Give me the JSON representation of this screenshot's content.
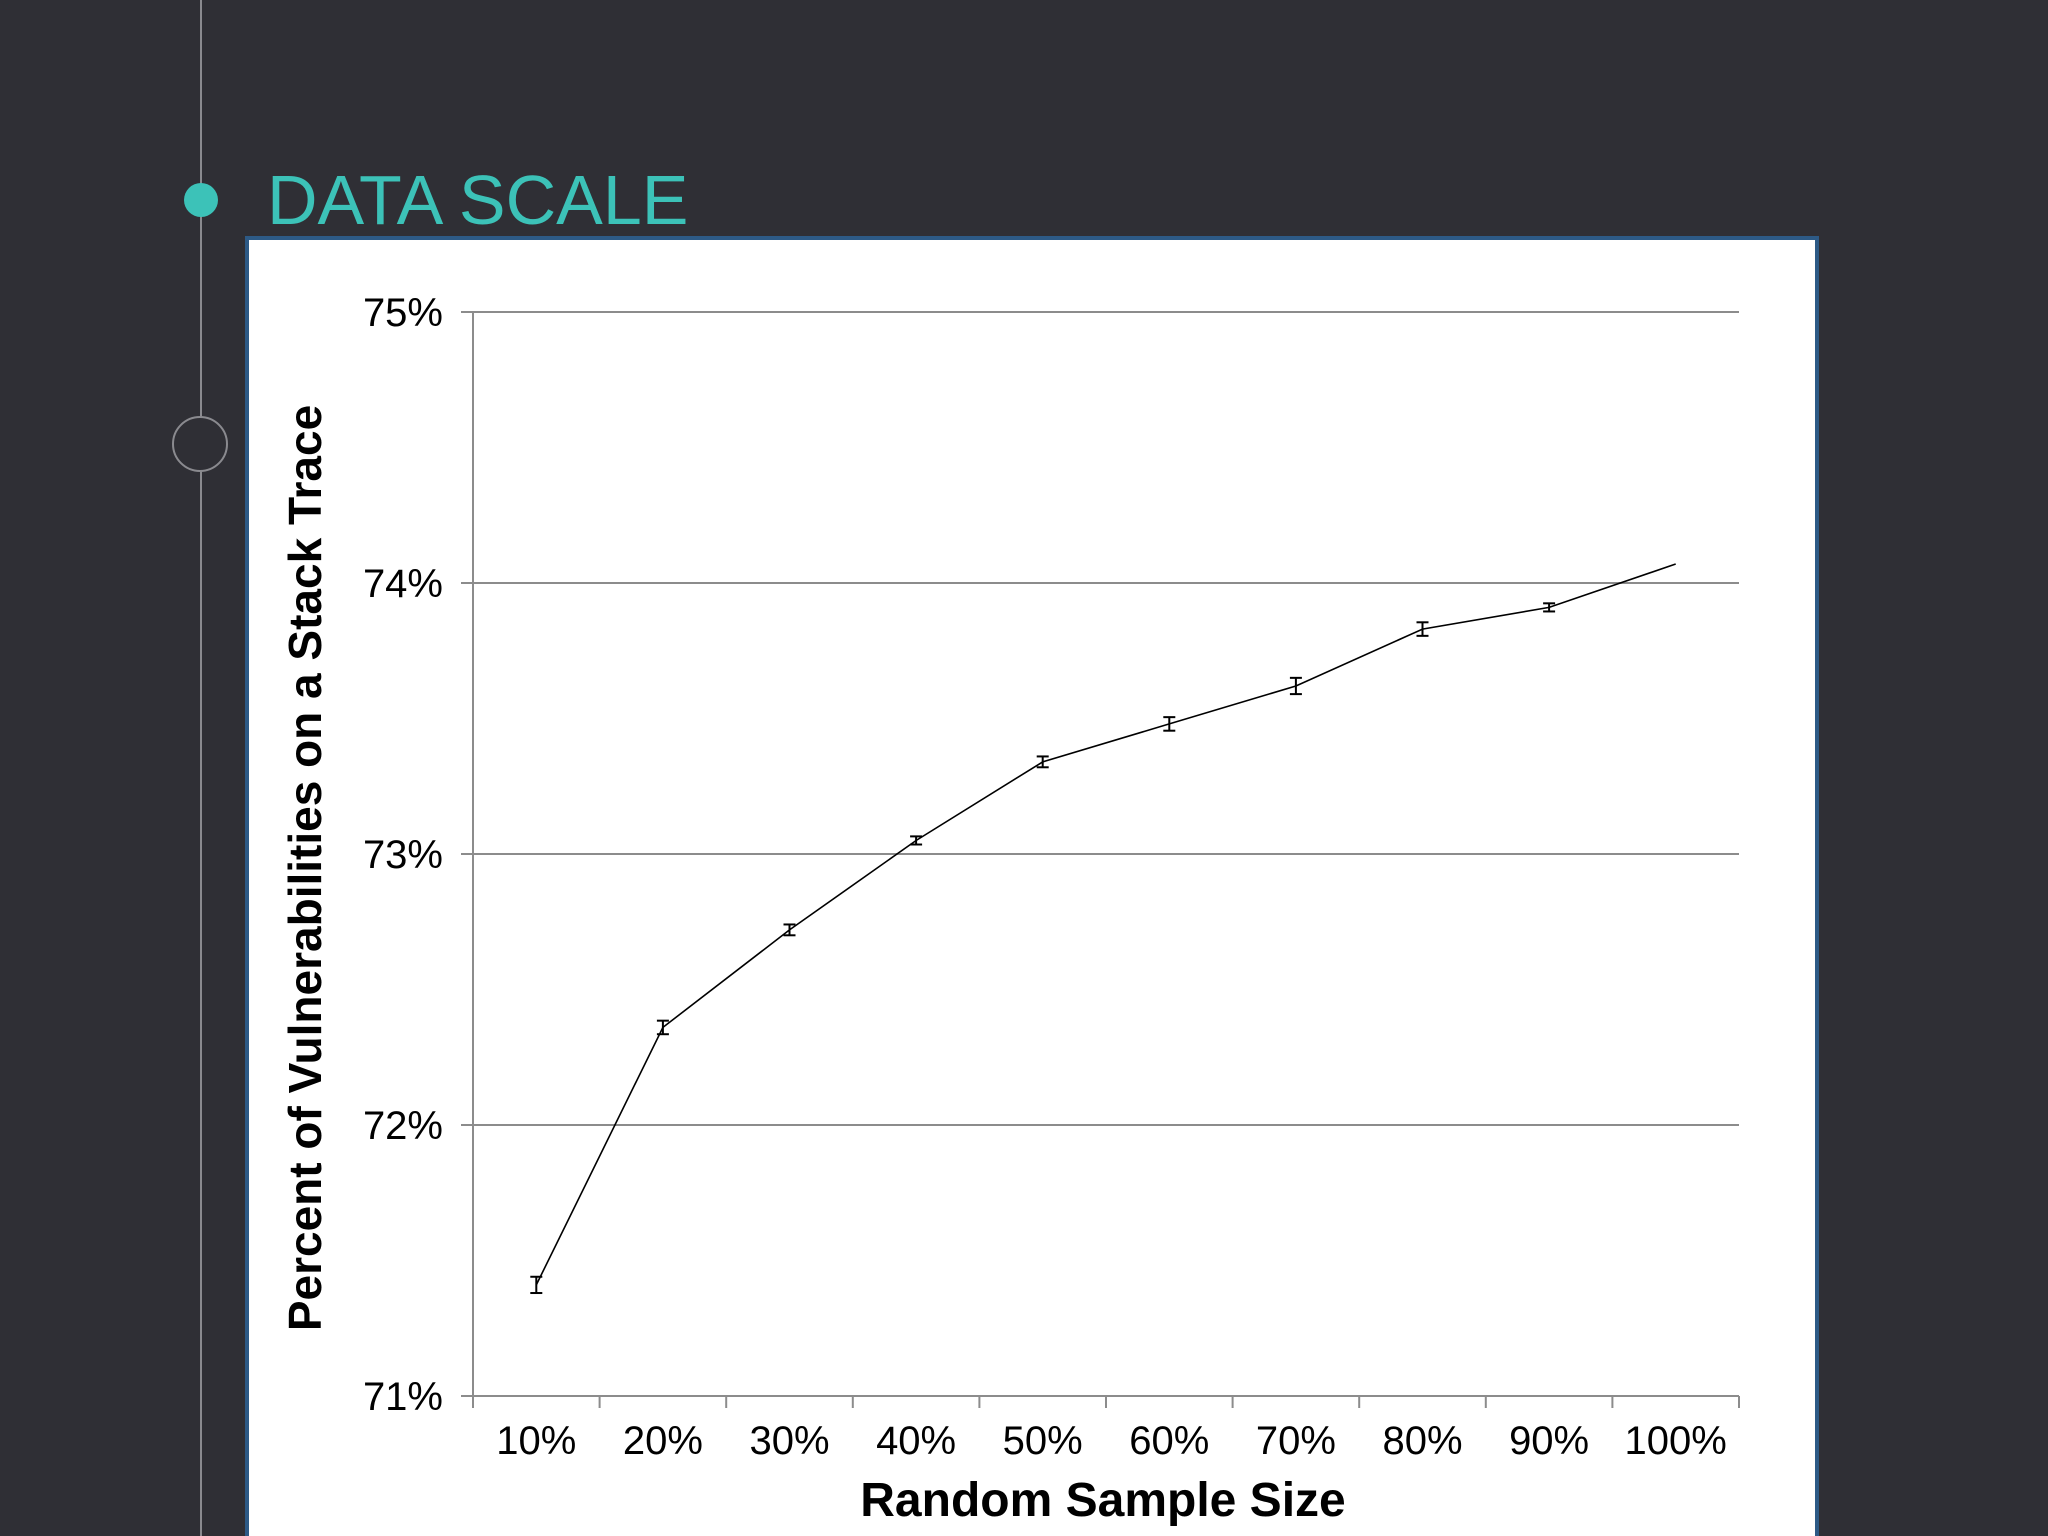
{
  "slide": {
    "section_title": "DATA SCALE"
  },
  "colors": {
    "background": "#2f2f35",
    "accent": "#3cc2b8",
    "panel_border": "#2d5a86",
    "timeline": "#8a8a8f"
  },
  "chart_data": {
    "type": "line",
    "title": "",
    "xlabel": "Random Sample Size",
    "ylabel": "Percent of Vulnerabilities on a Stack Trace",
    "categories": [
      "10%",
      "20%",
      "30%",
      "40%",
      "50%",
      "60%",
      "70%",
      "80%",
      "90%",
      "100%"
    ],
    "yticks": [
      "71%",
      "72%",
      "73%",
      "74%",
      "75%"
    ],
    "ylim": [
      71,
      75
    ],
    "grid": "horizontal",
    "legend": "none",
    "series": [
      {
        "values": [
          71.41,
          72.36,
          72.72,
          73.05,
          73.34,
          73.48,
          73.62,
          73.83,
          73.91,
          74.07
        ],
        "error": [
          0.03,
          0.025,
          0.02,
          0.015,
          0.02,
          0.025,
          0.03,
          0.025,
          0.015,
          null
        ]
      }
    ]
  }
}
